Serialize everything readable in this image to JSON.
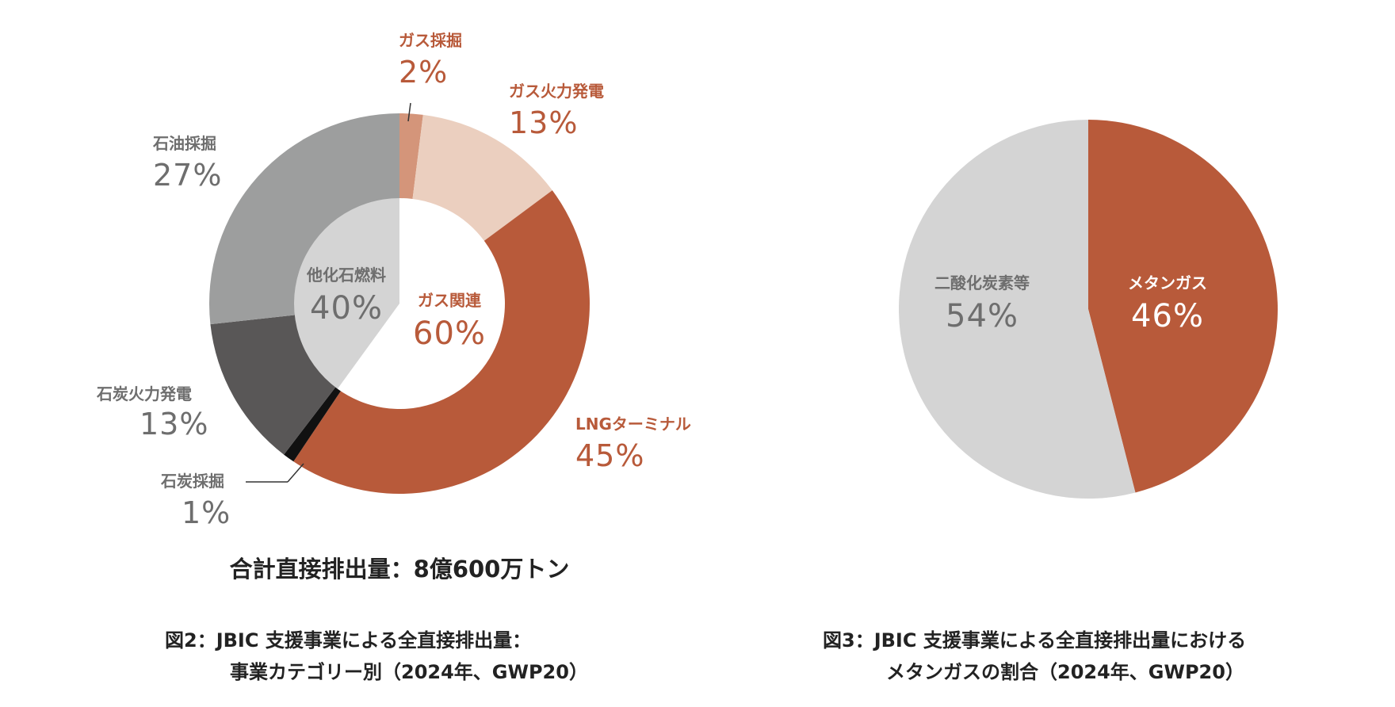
{
  "colors": {
    "gas_group": "#b85a3a",
    "gas_label": "#b85a3a",
    "gray_label": "#6e6e6e",
    "white_label": "#ffffff"
  },
  "chart_data": [
    {
      "type": "pie",
      "variant": "two-level-donut",
      "inner_ring": [
        {
          "label": "他化石燃料",
          "value": 40,
          "value_text": "40%",
          "color": "#d4d4d4"
        },
        {
          "label": "ガス関連",
          "value": 60,
          "value_text": "60%",
          "color": "#ffffff"
        }
      ],
      "outer_ring": [
        {
          "label": "ガス採掘",
          "value": 2,
          "value_text": "2%",
          "color": "#d4957a",
          "group": "ガス関連"
        },
        {
          "label": "ガス火力発電",
          "value": 13,
          "value_text": "13%",
          "color": "#ebcfbf",
          "group": "ガス関連"
        },
        {
          "label": "LNGターミナル",
          "value": 45,
          "value_text": "45%",
          "color": "#b85a3a",
          "group": "ガス関連"
        },
        {
          "label": "石炭採掘",
          "value": 1,
          "value_text": "1%",
          "color": "#111111",
          "group": "他化石燃料"
        },
        {
          "label": "石炭火力発電",
          "value": 13,
          "value_text": "13%",
          "color": "#595757",
          "group": "他化石燃料"
        },
        {
          "label": "石油採掘",
          "value": 27,
          "value_text": "27%",
          "color": "#9d9e9e",
          "group": "他化石燃料"
        }
      ],
      "total": "合計直接排出量：8億600万トン",
      "caption_lines": [
        "図2：JBIC 支援事業による全直接排出量：",
        "事業カテゴリー別（2024年、GWP20）"
      ]
    },
    {
      "type": "pie",
      "slices": [
        {
          "label": "メタンガス",
          "value": 46,
          "value_text": "46%",
          "color": "#b85a3a"
        },
        {
          "label": "二酸化炭素等",
          "value": 54,
          "value_text": "54%",
          "color": "#d4d4d4"
        }
      ],
      "caption_lines": [
        "図3：JBIC 支援事業による全直接排出量における",
        "メタンガスの割合（2024年、GWP20）"
      ]
    }
  ]
}
